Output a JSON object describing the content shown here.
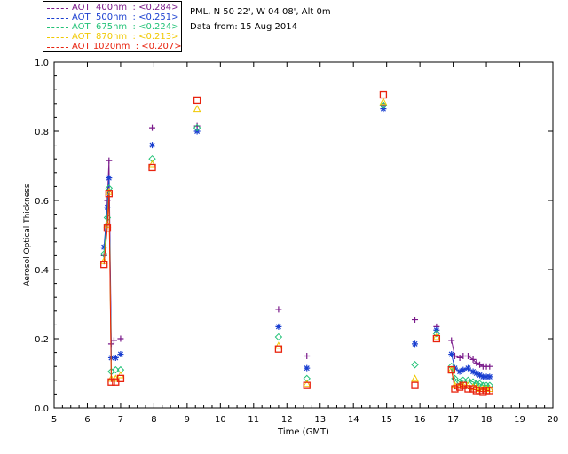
{
  "info": {
    "site": "PML, N 50 22', W 04 08', Alt 0m",
    "date": "Data from: 15 Aug 2014"
  },
  "chart_data": {
    "type": "scatter",
    "title": "",
    "xlabel": "Time (GMT)",
    "ylabel": "Aerosol Optical Thickness",
    "xlim": [
      5,
      20
    ],
    "ylim": [
      0.0,
      1.0
    ],
    "xticks": [
      "5",
      "6",
      "7",
      "8",
      "9",
      "10",
      "11",
      "12",
      "13",
      "14",
      "15",
      "16",
      "17",
      "18",
      "19",
      "20"
    ],
    "yticks": [
      "0.0",
      "0.2",
      "0.4",
      "0.6",
      "0.8",
      "1.0"
    ],
    "legend_position": "top-left",
    "series": [
      {
        "name": "AOT 400nm",
        "label": "AOT  400nm  : <0.284>",
        "color": "#7a1a8a",
        "marker": "plus",
        "x": [
          6.5,
          6.6,
          6.65,
          6.72,
          6.8,
          7.0,
          7.95,
          9.3,
          11.75,
          12.6,
          14.9,
          15.85,
          16.5,
          16.95,
          17.05,
          17.2,
          17.3,
          17.45,
          17.6,
          17.7,
          17.8,
          17.9,
          18.0,
          18.1
        ],
        "y": [
          0.44,
          0.6,
          0.715,
          0.185,
          0.195,
          0.2,
          0.81,
          0.815,
          0.285,
          0.15,
          0.875,
          0.255,
          0.235,
          0.195,
          0.15,
          0.145,
          0.15,
          0.15,
          0.14,
          0.13,
          0.125,
          0.12,
          0.12,
          0.12
        ]
      },
      {
        "name": "AOT 500nm",
        "label": "AOT  500nm  : <0.251>",
        "color": "#1a3fd0",
        "marker": "asterisk",
        "x": [
          6.5,
          6.6,
          6.65,
          6.72,
          6.85,
          7.0,
          7.95,
          9.3,
          11.75,
          12.6,
          14.9,
          15.85,
          16.5,
          16.95,
          17.05,
          17.2,
          17.3,
          17.45,
          17.6,
          17.7,
          17.8,
          17.9,
          18.0,
          18.1
        ],
        "y": [
          0.465,
          0.58,
          0.665,
          0.145,
          0.145,
          0.155,
          0.76,
          0.8,
          0.235,
          0.115,
          0.865,
          0.185,
          0.225,
          0.155,
          0.115,
          0.105,
          0.11,
          0.115,
          0.105,
          0.1,
          0.095,
          0.09,
          0.09,
          0.09
        ]
      },
      {
        "name": "AOT 675nm",
        "label": "AOT  675nm  : <0.224>",
        "color": "#22c277",
        "marker": "diamond",
        "x": [
          6.5,
          6.6,
          6.65,
          6.72,
          6.85,
          7.0,
          7.95,
          9.3,
          11.75,
          12.6,
          14.9,
          15.85,
          16.5,
          16.95,
          17.05,
          17.2,
          17.3,
          17.45,
          17.6,
          17.7,
          17.8,
          17.9,
          18.0,
          18.1
        ],
        "y": [
          0.445,
          0.55,
          0.635,
          0.105,
          0.11,
          0.11,
          0.72,
          0.81,
          0.205,
          0.085,
          0.875,
          0.125,
          0.215,
          0.12,
          0.085,
          0.075,
          0.08,
          0.08,
          0.075,
          0.07,
          0.07,
          0.065,
          0.065,
          0.065
        ]
      },
      {
        "name": "AOT 870nm",
        "label": "AOT  870nm  : <0.213>",
        "color": "#f0c800",
        "marker": "triangle",
        "x": [
          6.5,
          6.6,
          6.65,
          6.72,
          6.85,
          7.0,
          7.95,
          9.3,
          11.75,
          12.6,
          14.9,
          15.85,
          16.5,
          16.95,
          17.05,
          17.2,
          17.3,
          17.45,
          17.6,
          17.7,
          17.8,
          17.9,
          18.0,
          18.1
        ],
        "y": [
          0.425,
          0.53,
          0.625,
          0.085,
          0.085,
          0.095,
          0.705,
          0.865,
          0.18,
          0.07,
          0.885,
          0.085,
          0.205,
          0.11,
          0.065,
          0.065,
          0.065,
          0.065,
          0.06,
          0.06,
          0.055,
          0.055,
          0.055,
          0.055
        ]
      },
      {
        "name": "AOT 1020nm",
        "label": "AOT 1020nm  : <0.207>",
        "color": "#e8230f",
        "marker": "square",
        "x": [
          6.5,
          6.6,
          6.65,
          6.72,
          6.85,
          7.0,
          7.95,
          9.3,
          11.75,
          12.6,
          14.9,
          15.85,
          16.5,
          16.95,
          17.05,
          17.2,
          17.3,
          17.45,
          17.6,
          17.7,
          17.8,
          17.9,
          18.0,
          18.1
        ],
        "y": [
          0.415,
          0.52,
          0.62,
          0.075,
          0.075,
          0.085,
          0.695,
          0.89,
          0.17,
          0.065,
          0.905,
          0.065,
          0.2,
          0.11,
          0.055,
          0.06,
          0.065,
          0.055,
          0.055,
          0.05,
          0.05,
          0.045,
          0.05,
          0.05
        ]
      }
    ]
  }
}
